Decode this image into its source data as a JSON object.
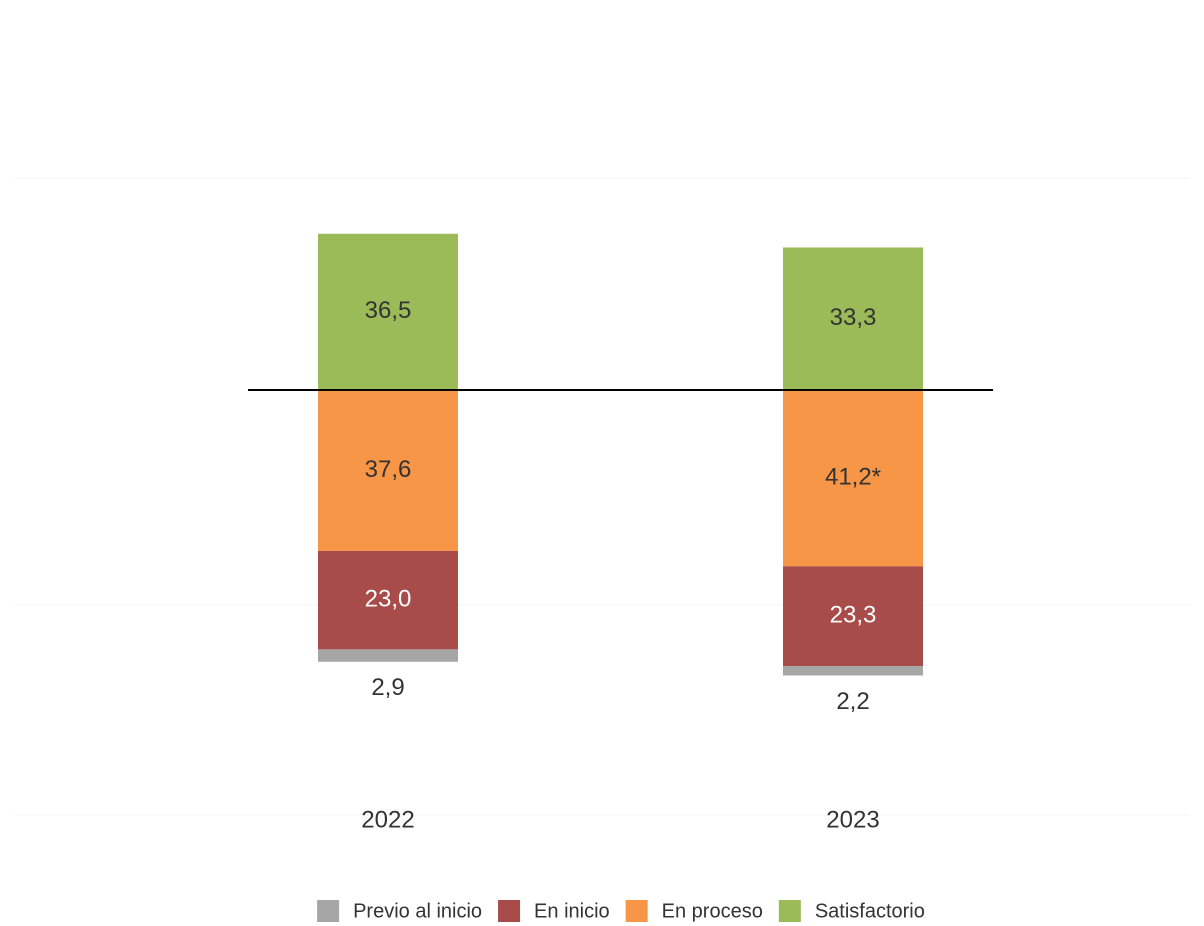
{
  "chart_data": {
    "type": "diverging_stacked_bar",
    "categories": [
      "2022",
      "2023"
    ],
    "series": [
      {
        "name": "Previo al inicio",
        "color": "#a6a6a6",
        "values": [
          2.9,
          2.2
        ],
        "value_labels": [
          "2,9",
          "2,2"
        ]
      },
      {
        "name": "En inicio",
        "color": "#a84c4a",
        "values": [
          23.0,
          23.3
        ],
        "value_labels": [
          "23,0",
          "23,3"
        ]
      },
      {
        "name": "En proceso",
        "color": "#f79646",
        "values": [
          37.6,
          41.2
        ],
        "value_labels": [
          "37,6",
          "41,2*"
        ]
      },
      {
        "name": "Satisfactorio",
        "color": "#9bbb59",
        "values": [
          36.5,
          33.3
        ],
        "value_labels": [
          "36,5",
          "33,3"
        ]
      }
    ],
    "legend": "bottom"
  }
}
